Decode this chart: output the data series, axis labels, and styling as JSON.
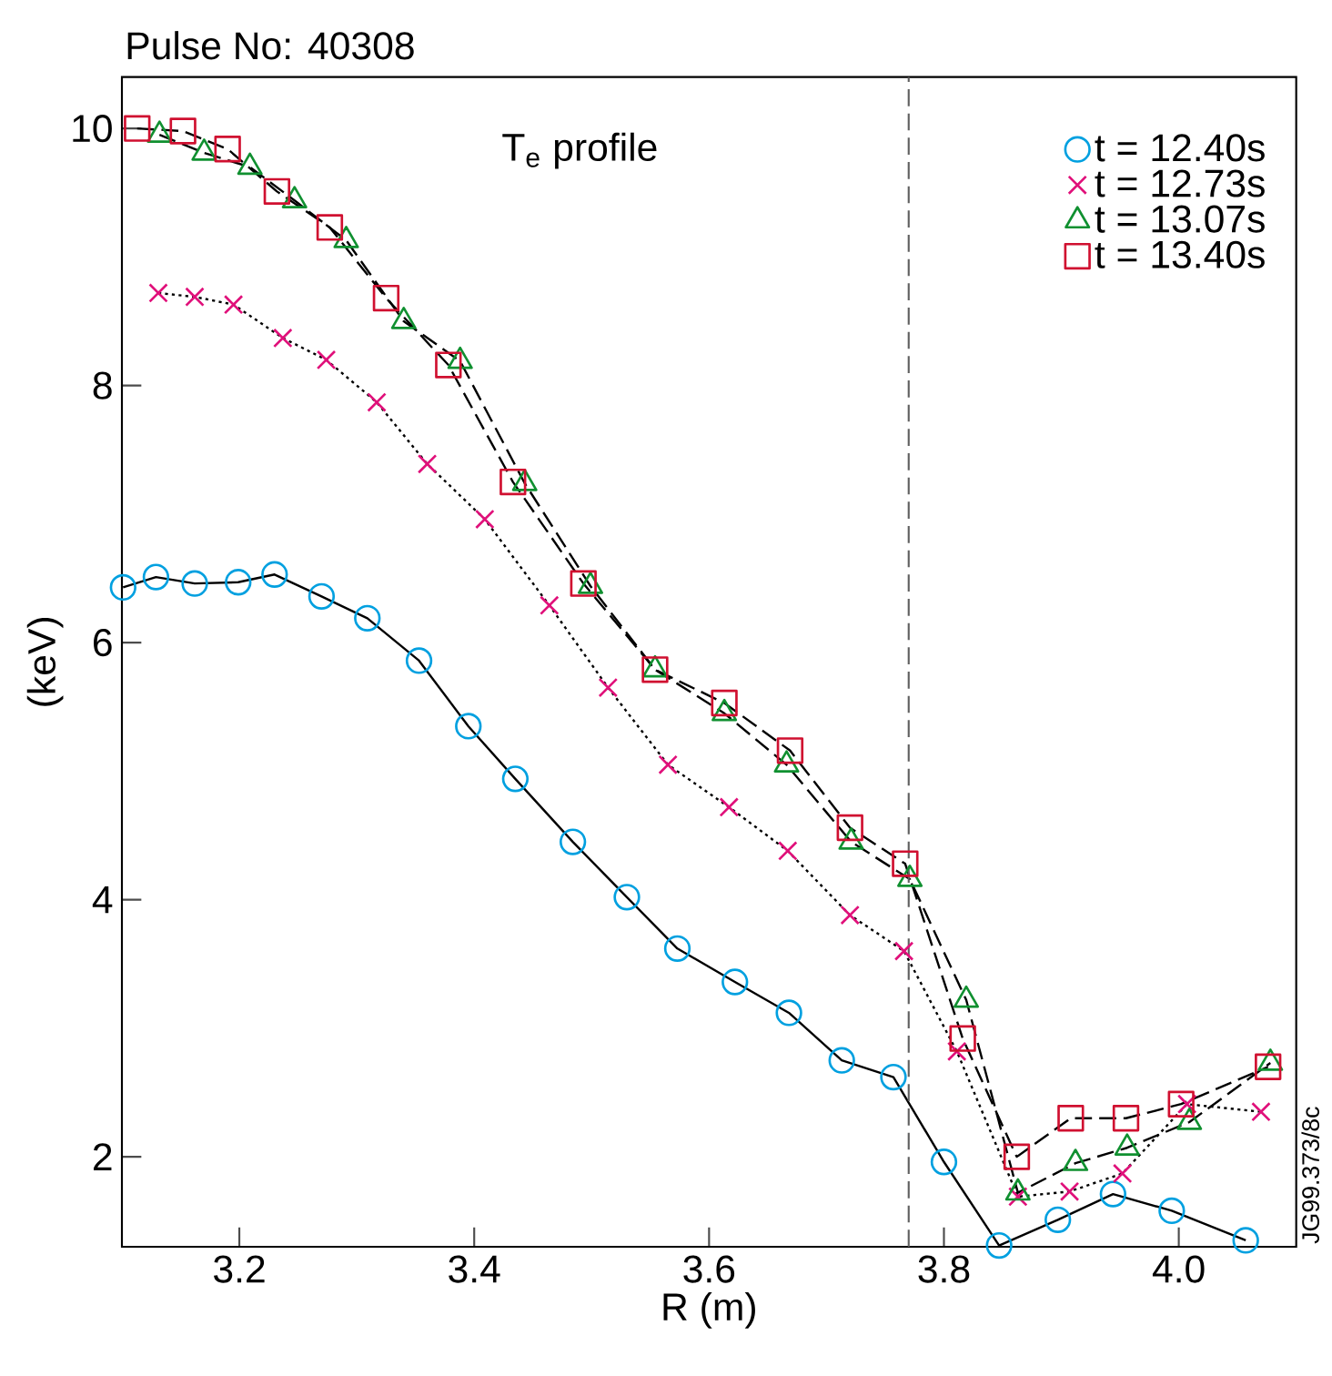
{
  "chart_data": {
    "type": "line",
    "title": "Pulse No: 40308",
    "xlabel": "R (m)",
    "ylabel": "(keV)",
    "annotations": [
      "T$_{e}$ profile",
      "JG99.373/8c"
    ],
    "xlim": [
      3.1,
      4.1
    ],
    "ylim": [
      1.3,
      10.4
    ],
    "xticks": [
      {
        "value": 3.2,
        "label": "3.2"
      },
      {
        "value": 3.4,
        "label": "3.4"
      },
      {
        "value": 3.6,
        "label": "3.6"
      },
      {
        "value": 3.8,
        "label": "3.8"
      },
      {
        "value": 4.0,
        "label": "4.0"
      }
    ],
    "yticks": [
      2,
      4,
      6,
      8,
      10
    ],
    "grid": false,
    "legend": "top right",
    "ref_lines": [
      {
        "axis": "x",
        "value": 3.77,
        "color": "#606060",
        "line_style": "dashed"
      }
    ],
    "series": [
      {
        "name": "t = 12.40s",
        "color": "#00a0e0",
        "marker": "circle",
        "line_style": "solid",
        "x": [
          3.101,
          3.129,
          3.162,
          3.199,
          3.23,
          3.27,
          3.309,
          3.353,
          3.395,
          3.435,
          3.484,
          3.53,
          3.573,
          3.622,
          3.668,
          3.713,
          3.757,
          3.8,
          3.847,
          3.897,
          3.944,
          3.994,
          4.057
        ],
        "values": [
          6.43,
          6.51,
          6.46,
          6.47,
          6.53,
          6.36,
          6.19,
          5.86,
          5.35,
          4.94,
          4.45,
          4.02,
          3.62,
          3.36,
          3.12,
          2.75,
          2.62,
          1.96,
          1.31,
          1.51,
          1.71,
          1.58,
          1.35
        ]
      },
      {
        "name": "t = 12.73s",
        "color": "#e0107a",
        "marker": "cross",
        "line_style": "dotted",
        "x": [
          3.131,
          3.162,
          3.195,
          3.237,
          3.274,
          3.317,
          3.36,
          3.409,
          3.464,
          3.514,
          3.565,
          3.617,
          3.667,
          3.72,
          3.766,
          3.811,
          3.863,
          3.907,
          3.952,
          4.007,
          4.07
        ],
        "values": [
          8.72,
          8.69,
          8.63,
          8.37,
          8.2,
          7.87,
          7.39,
          6.96,
          6.29,
          5.65,
          5.05,
          4.72,
          4.38,
          3.88,
          3.6,
          2.82,
          1.69,
          1.73,
          1.87,
          2.41,
          2.35
        ]
      },
      {
        "name": "t = 13.07s",
        "color": "#109030",
        "marker": "triangle",
        "line_style": "dashed",
        "x": [
          3.132,
          3.17,
          3.209,
          3.247,
          3.291,
          3.34,
          3.388,
          3.443,
          3.499,
          3.554,
          3.613,
          3.666,
          3.721,
          3.771,
          3.819,
          3.863,
          3.912,
          3.956,
          4.009,
          4.078
        ],
        "values": [
          9.95,
          9.81,
          9.7,
          9.44,
          9.13,
          8.5,
          8.19,
          7.24,
          6.44,
          5.79,
          5.45,
          5.05,
          4.45,
          4.16,
          3.22,
          1.72,
          1.95,
          2.07,
          2.27,
          2.73
        ]
      },
      {
        "name": "t = 13.40s",
        "color": "#d01030",
        "marker": "square",
        "line_style": "dashed",
        "x": [
          3.113,
          3.152,
          3.19,
          3.232,
          3.277,
          3.325,
          3.378,
          3.433,
          3.493,
          3.554,
          3.613,
          3.669,
          3.72,
          3.767,
          3.816,
          3.862,
          3.908,
          3.955,
          4.002,
          4.076
        ],
        "values": [
          10.0,
          9.98,
          9.84,
          9.51,
          9.23,
          8.68,
          8.16,
          7.25,
          6.46,
          5.79,
          5.53,
          5.16,
          4.56,
          4.28,
          2.92,
          2.0,
          2.3,
          2.3,
          2.41,
          2.7
        ]
      }
    ]
  }
}
